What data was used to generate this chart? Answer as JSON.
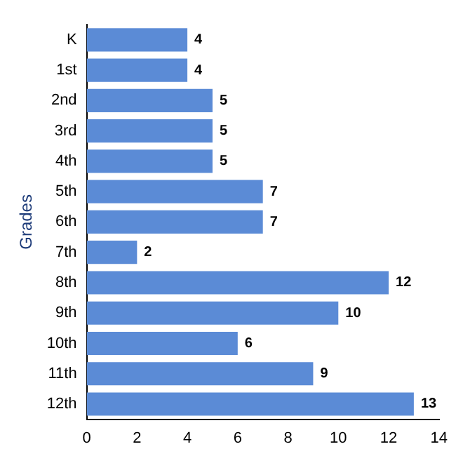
{
  "chart_data": {
    "type": "bar",
    "orientation": "horizontal",
    "ylabel": "Grades",
    "categories": [
      "K",
      "1st",
      "2nd",
      "3rd",
      "4th",
      "5th",
      "6th",
      "7th",
      "8th",
      "9th",
      "10th",
      "11th",
      "12th"
    ],
    "values": [
      4,
      4,
      5,
      5,
      5,
      7,
      7,
      2,
      12,
      10,
      6,
      9,
      13
    ],
    "color": "#5b8bd6",
    "xlim": [
      0,
      14
    ],
    "xticks": [
      0,
      2,
      4,
      6,
      8,
      10,
      12,
      14
    ],
    "grid": false,
    "legend": false,
    "data_labels": true
  }
}
